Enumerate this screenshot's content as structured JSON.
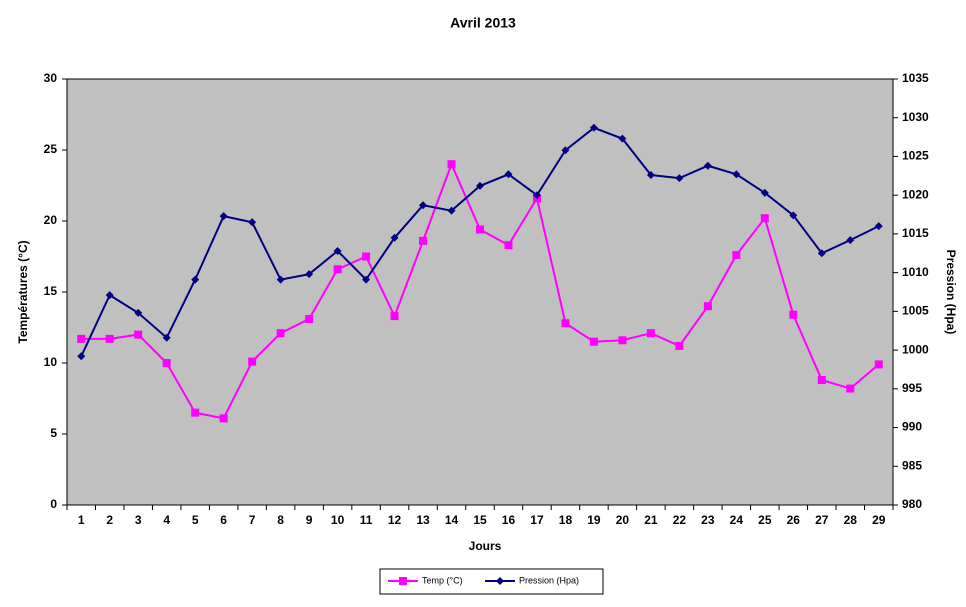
{
  "chart_data": {
    "type": "line",
    "title": "Avril 2013",
    "x_label": "Jours",
    "y_label": "Températures (°C)",
    "y2_label": "Pression (Hpa)",
    "categories": [
      "1",
      "2",
      "3",
      "4",
      "5",
      "6",
      "7",
      "8",
      "9",
      "10",
      "11",
      "12",
      "13",
      "14",
      "15",
      "16",
      "17",
      "18",
      "19",
      "20",
      "21",
      "22",
      "23",
      "24",
      "25",
      "26",
      "27",
      "28",
      "29"
    ],
    "series": [
      {
        "name": "Temp (°C)",
        "color": "#ff00ff",
        "marker": "square",
        "axis": "y",
        "values": [
          11.7,
          11.7,
          12.0,
          10.0,
          6.5,
          6.1,
          10.1,
          12.1,
          13.1,
          16.6,
          17.5,
          13.3,
          18.6,
          24.0,
          19.4,
          18.3,
          21.6,
          12.8,
          11.5,
          11.6,
          12.1,
          11.2,
          14.0,
          17.6,
          20.2,
          13.4,
          8.8,
          8.2,
          9.9
        ]
      },
      {
        "name": "Pression (Hpa)",
        "color": "#000080",
        "marker": "diamond",
        "axis": "y2",
        "values": [
          999.2,
          1007.1,
          1004.8,
          1001.6,
          1009.1,
          1017.3,
          1016.5,
          1009.1,
          1009.8,
          1012.8,
          1009.1,
          1014.5,
          1018.7,
          1018.0,
          1021.2,
          1022.7,
          1020.0,
          1025.8,
          1028.7,
          1027.3,
          1022.6,
          1022.2,
          1023.8,
          1022.7,
          1020.3,
          1017.4,
          1012.5,
          1014.2,
          1016.0
        ]
      }
    ],
    "ylim": [
      0,
      30
    ],
    "yticks": [
      0,
      5,
      10,
      15,
      20,
      25,
      30
    ],
    "y2lim": [
      980,
      1035
    ],
    "y2ticks": [
      980,
      985,
      990,
      995,
      1000,
      1005,
      1010,
      1015,
      1020,
      1025,
      1030,
      1035
    ],
    "plot_background": "#c0c0c0",
    "legend": "bottom"
  }
}
